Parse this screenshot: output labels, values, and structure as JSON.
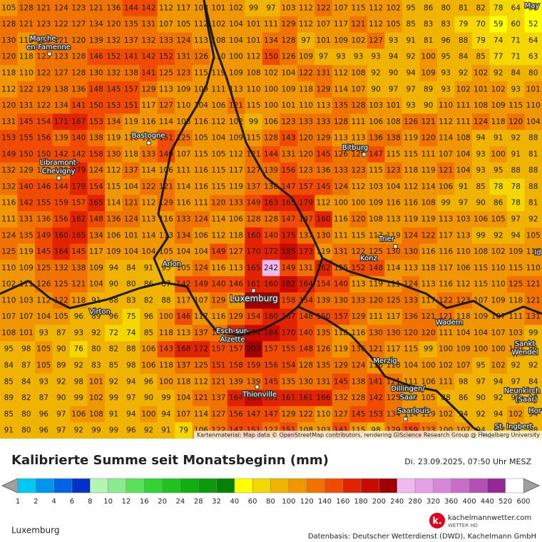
{
  "map": {
    "grid": [
      [
        105,
        128,
        121,
        124,
        123,
        121,
        136,
        144,
        142,
        112,
        117,
        108,
        101,
        102,
        99,
        97,
        103,
        112,
        122,
        107,
        115,
        112,
        102,
        95,
        86,
        80,
        81,
        82,
        78,
        64,
        55
      ],
      [
        128,
        121,
        123,
        122,
        127,
        134,
        120,
        135,
        131,
        107,
        105,
        112,
        102,
        104,
        101,
        111,
        129,
        112,
        107,
        117,
        121,
        112,
        105,
        85,
        83,
        83,
        79,
        70,
        59,
        60,
        52
      ],
      [
        130,
        118,
        125,
        121,
        120,
        139,
        132,
        137,
        132,
        133,
        124,
        113,
        108,
        104,
        101,
        134,
        128,
        97,
        101,
        109,
        102,
        127,
        93,
        91,
        81,
        96,
        88,
        79,
        74,
        71,
        64
      ],
      [
        120,
        118,
        123,
        123,
        128,
        146,
        152,
        141,
        142,
        152,
        131,
        126,
        110,
        100,
        112,
        150,
        126,
        109,
        97,
        93,
        93,
        93,
        94,
        92,
        100,
        95,
        84,
        85,
        77,
        71,
        63
      ],
      [
        118,
        110,
        122,
        127,
        128,
        130,
        132,
        138,
        141,
        125,
        123,
        115,
        119,
        109,
        108,
        102,
        104,
        122,
        131,
        112,
        108,
        92,
        90,
        94,
        109,
        93,
        92,
        102,
        92,
        84,
        80
      ],
      [
        112,
        122,
        129,
        138,
        136,
        148,
        145,
        157,
        129,
        113,
        109,
        109,
        111,
        113,
        110,
        100,
        109,
        118,
        129,
        114,
        107,
        90,
        97,
        97,
        89,
        93,
        102,
        101,
        102,
        93,
        101
      ],
      [
        120,
        131,
        122,
        134,
        141,
        150,
        153,
        151,
        117,
        127,
        110,
        104,
        106,
        121,
        115,
        100,
        101,
        110,
        113,
        135,
        128,
        103,
        101,
        93,
        90,
        110,
        111,
        108,
        109,
        115,
        110
      ],
      [
        131,
        145,
        154,
        171,
        167,
        153,
        134,
        119,
        116,
        114,
        108,
        116,
        112,
        102,
        99,
        106,
        123,
        133,
        133,
        128,
        111,
        106,
        108,
        126,
        121,
        112,
        111,
        124,
        118,
        120,
        104
      ],
      [
        153,
        155,
        156,
        139,
        140,
        138,
        119,
        118,
        110,
        151,
        125,
        105,
        104,
        109,
        115,
        128,
        143,
        120,
        129,
        113,
        113,
        136,
        138,
        119,
        120,
        114,
        108,
        94,
        91,
        92,
        88
      ],
      [
        149,
        150,
        150,
        142,
        142,
        158,
        130,
        118,
        133,
        140,
        107,
        115,
        105,
        112,
        121,
        144,
        131,
        120,
        145,
        126,
        129,
        147,
        115,
        115,
        111,
        107,
        104,
        93,
        100,
        91,
        81
      ],
      [
        132,
        129,
        138,
        129,
        179,
        124,
        112,
        137,
        114,
        106,
        111,
        116,
        115,
        117,
        127,
        139,
        156,
        123,
        136,
        133,
        123,
        115,
        123,
        118,
        119,
        121,
        104,
        93,
        95,
        88,
        88
      ],
      [
        132,
        140,
        146,
        144,
        179,
        154,
        115,
        104,
        122,
        121,
        114,
        116,
        115,
        119,
        137,
        138,
        147,
        157,
        145,
        124,
        112,
        103,
        104,
        112,
        114,
        106,
        91,
        85,
        78,
        78,
        88
      ],
      [
        116,
        142,
        155,
        159,
        157,
        165,
        114,
        121,
        112,
        129,
        116,
        111,
        120,
        133,
        149,
        163,
        165,
        179,
        112,
        100,
        100,
        109,
        116,
        116,
        108,
        99,
        97,
        90,
        86,
        78,
        81
      ],
      [
        111,
        131,
        136,
        156,
        162,
        148,
        136,
        124,
        113,
        116,
        133,
        124,
        114,
        106,
        128,
        128,
        147,
        147,
        160,
        116,
        120,
        108,
        113,
        119,
        119,
        113,
        103,
        106,
        105,
        97,
        92
      ],
      [
        124,
        135,
        149,
        160,
        165,
        134,
        106,
        101,
        114,
        113,
        134,
        106,
        112,
        118,
        160,
        140,
        175,
        137,
        130,
        111,
        115,
        117,
        119,
        124,
        122,
        117,
        113,
        99,
        92,
        94,
        105
      ],
      [
        125,
        119,
        145,
        164,
        145,
        117,
        109,
        104,
        104,
        105,
        104,
        104,
        149,
        127,
        170,
        172,
        185,
        173,
        119,
        131,
        122,
        125,
        130,
        130,
        116,
        116,
        110,
        108,
        102,
        109,
        116
      ],
      [
        110,
        109,
        125,
        132,
        138,
        109,
        94,
        84,
        91,
        95,
        105,
        124,
        116,
        113,
        165,
        242,
        149,
        131,
        162,
        125,
        152,
        148,
        114,
        113,
        118,
        117,
        106,
        115,
        110,
        115,
        110
      ],
      [
        102,
        111,
        126,
        125,
        121,
        104,
        90,
        80,
        86,
        87,
        142,
        149,
        140,
        146,
        161,
        160,
        182,
        164,
        154,
        140,
        113,
        119,
        111,
        124,
        113,
        116,
        112,
        115,
        110,
        125,
        121
      ],
      [
        110,
        103,
        112,
        122,
        118,
        91,
        88,
        83,
        82,
        88,
        117,
        107,
        129,
        119,
        210,
        211,
        158,
        154,
        139,
        130,
        133,
        120,
        125,
        133,
        117,
        122,
        123,
        107,
        109,
        118,
        121
      ],
      [
        107,
        107,
        104,
        105,
        96,
        89,
        96,
        75,
        96,
        100,
        146,
        117,
        116,
        129,
        154,
        160,
        167,
        148,
        150,
        157,
        129,
        111,
        117,
        136,
        121,
        121,
        118,
        109,
        107,
        111,
        131
      ],
      [
        108,
        101,
        93,
        87,
        93,
        92,
        72,
        74,
        85,
        118,
        113,
        137,
        124,
        162,
        194,
        184,
        170,
        140,
        135,
        118,
        116,
        130,
        130,
        120,
        120,
        111,
        104,
        104,
        107,
        103,
        99
      ],
      [
        95,
        98,
        105,
        90,
        76,
        80,
        82,
        88,
        106,
        143,
        168,
        172,
        157,
        157,
        207,
        157,
        155,
        148,
        126,
        119,
        136,
        121,
        117,
        115,
        99,
        100,
        109,
        100,
        100,
        100,
        96
      ],
      [
        84,
        87,
        105,
        89,
        92,
        83,
        85,
        98,
        106,
        118,
        137,
        125,
        151,
        158,
        159,
        156,
        154,
        128,
        135,
        129,
        124,
        116,
        118,
        104,
        100,
        102,
        107,
        95,
        102,
        92,
        92
      ],
      [
        85,
        84,
        93,
        92,
        98,
        101,
        92,
        94,
        96,
        100,
        118,
        112,
        121,
        139,
        139,
        145,
        135,
        130,
        131,
        145,
        138,
        141,
        121,
        111,
        106,
        111,
        98,
        97,
        94,
        97,
        84
      ],
      [
        89,
        82,
        87,
        90,
        99,
        102,
        99,
        97,
        90,
        99,
        104,
        121,
        137,
        164,
        183,
        161,
        161,
        161,
        166,
        132,
        128,
        142,
        125,
        112,
        105,
        88,
        86,
        90,
        92,
        96,
        90
      ],
      [
        85,
        80,
        96,
        97,
        106,
        108,
        91,
        94,
        100,
        94,
        107,
        114,
        127,
        156,
        147,
        147,
        129,
        122,
        110,
        127,
        145,
        153,
        134,
        114,
        119,
        102,
        94,
        92,
        94,
        102,
        94
      ],
      [
        91,
        80,
        96,
        97,
        92,
        99,
        99,
        96,
        92,
        91,
        79,
        106,
        122,
        147,
        151,
        127,
        151,
        108,
        103,
        141,
        115,
        98,
        129,
        159,
        123,
        100,
        107,
        94,
        90,
        89,
        88
      ]
    ],
    "places": [
      "Marche-",
      "en-Famenne",
      "Bastogne",
      "Libramont-",
      "Chevigny",
      "Bitburg",
      "Trier",
      "Konz",
      "Arlon",
      "Luxemburg",
      "Virton",
      "Wadern",
      "Esch-sur-",
      "Alzette",
      "Sankt",
      "Wendel",
      "Merzig",
      "Dillingen/",
      "Saar",
      "Thionville",
      "Saarlouis",
      "Neunkirch",
      "(Saar)",
      "Hor",
      "St. Ingbert",
      "Id",
      "May"
    ],
    "attribution": "Kartenmaterial: Map data © OpenStreetMap contributors, rendering GIScience Research Group @ Heidelberg University"
  },
  "title": "Kalibrierte Summe seit Monatsbeginn (mm)",
  "timestamp": "Di. 23.09.2025, 07:50 Uhr MESZ",
  "legend": {
    "labels": [
      1,
      2,
      4,
      6,
      8,
      10,
      12,
      16,
      20,
      24,
      28,
      32,
      40,
      60,
      80,
      100,
      120,
      140,
      160,
      180,
      200,
      240,
      280,
      320,
      360,
      400,
      440,
      520,
      600
    ],
    "colors": [
      "#00c8f5",
      "#0096f0",
      "#0064e6",
      "#0032c8",
      "#b4f5b4",
      "#8ceb8c",
      "#5ae15a",
      "#32d232",
      "#1ec31e",
      "#0faf0f",
      "#0a9b0a",
      "#058205",
      "#ffff00",
      "#f5d700",
      "#f0b400",
      "#f09600",
      "#f07300",
      "#f04b00",
      "#e12300",
      "#c80a00",
      "#a00000",
      "#f0b9f0",
      "#e6a0e6",
      "#d787d7",
      "#c86ec8",
      "#b450b4",
      "#962896",
      "#ffffff"
    ],
    "end_color": "#a0a0a0"
  },
  "region": "Luxemburg",
  "logo": {
    "name": "kachelmannwetter.com",
    "tagline": "WETTER HD"
  },
  "source": "Datenbasis: Deutscher Wetterdienst (DWD), Kachelmann GmbH"
}
